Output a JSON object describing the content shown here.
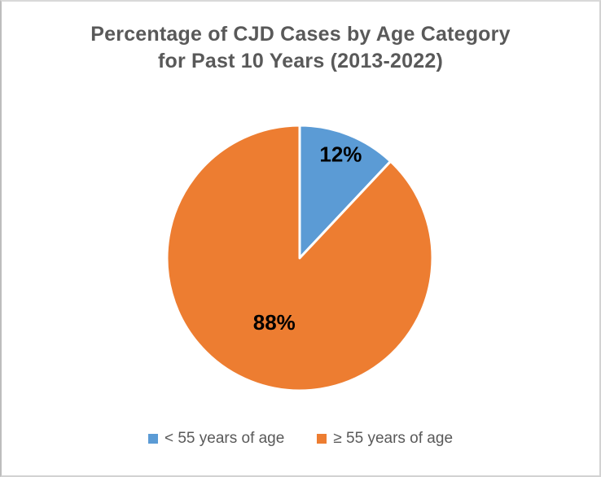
{
  "chart_data": {
    "type": "pie",
    "title": "Percentage of CJD Cases by Age Category for Past 10 Years (2013-2022)",
    "title_lines": [
      "Percentage of CJD Cases by Age Category",
      "for Past 10 Years (2013-2022)"
    ],
    "categories": [
      "< 55 years of age",
      "≥ 55 years of age"
    ],
    "values": [
      12,
      88
    ],
    "data_labels": [
      "12%",
      "88%"
    ],
    "colors": [
      "#5B9BD5",
      "#ED7D31"
    ],
    "slice_order": "clockwise-from-top",
    "legend_position": "bottom",
    "title_color": "#595959",
    "legend_text_color": "#595959",
    "data_label_color": "#000000",
    "slice_border_color": "#FFFFFF"
  }
}
